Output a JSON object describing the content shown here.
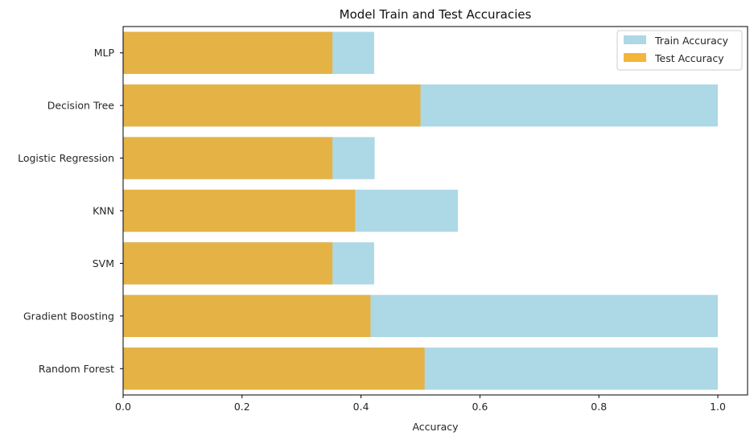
{
  "chart_data": {
    "type": "bar",
    "orientation": "horizontal",
    "title": "Model Train and Test Accuracies",
    "xlabel": "Accuracy",
    "ylabel": "",
    "xlim": [
      0,
      1.05
    ],
    "xticks": [
      "0.0",
      "0.2",
      "0.4",
      "0.6",
      "0.8",
      "1.0"
    ],
    "categories": [
      "Random Forest",
      "Gradient Boosting",
      "SVM",
      "KNN",
      "Logistic Regression",
      "Decision Tree",
      "MLP"
    ],
    "series": [
      {
        "name": "Train Accuracy",
        "color": "#add8e6",
        "values": [
          1.0,
          1.0,
          0.422,
          0.563,
          0.423,
          1.0,
          0.422
        ]
      },
      {
        "name": "Test Accuracy",
        "color": "#f5b53a",
        "values": [
          0.507,
          0.416,
          0.352,
          0.39,
          0.352,
          0.5,
          0.352
        ]
      }
    ],
    "overlap_color": "#e5b345",
    "grid": false,
    "legend_position": "top-right"
  }
}
